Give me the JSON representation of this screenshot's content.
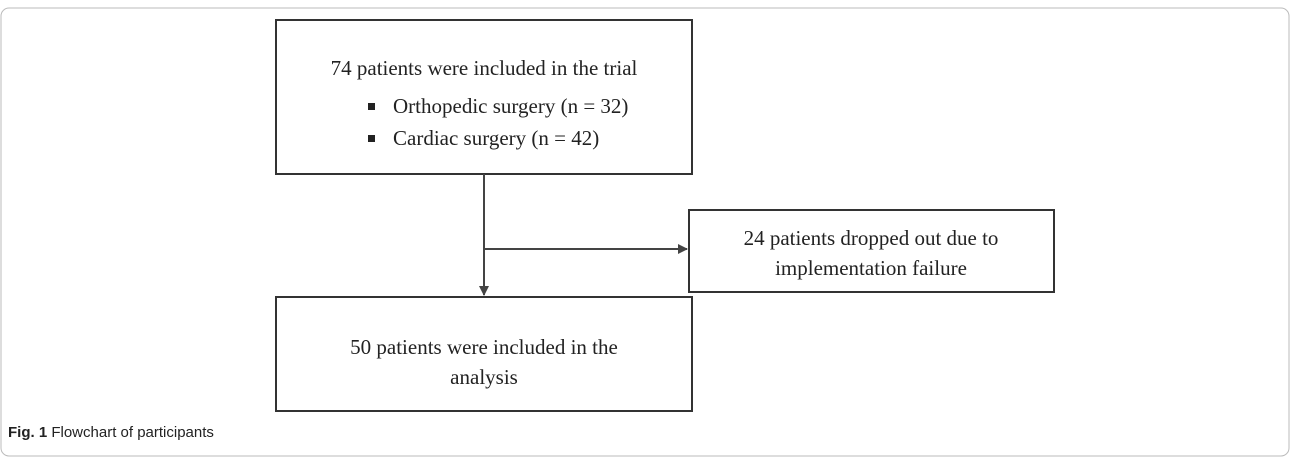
{
  "nodes": [
    {
      "title": "74 patients were included in the trial",
      "items": [
        "Orthopedic surgery (n = 32)",
        "Cardiac surgery (n = 42)"
      ]
    },
    {
      "lines": [
        "24 patients dropped out due to",
        "implementation  failure"
      ]
    },
    {
      "lines": [
        "50 patients were included in the",
        "analysis"
      ]
    }
  ],
  "caption": {
    "label": "Fig. 1",
    "text": "Flowchart of participants"
  }
}
